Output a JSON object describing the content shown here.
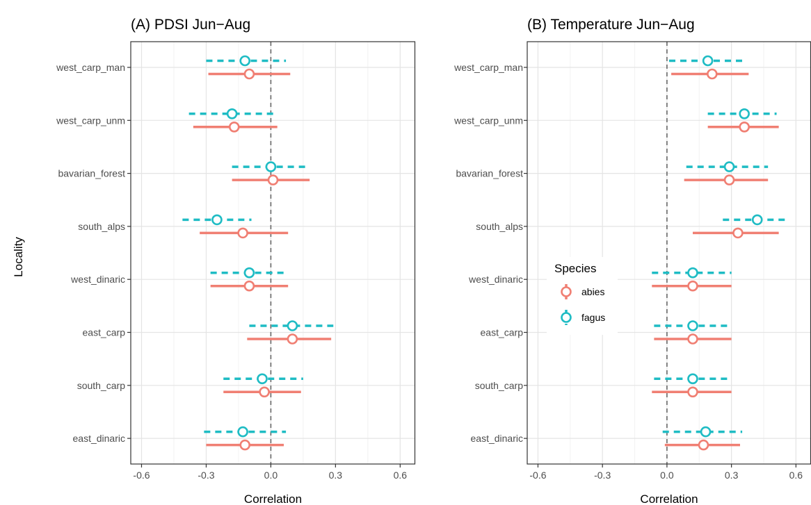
{
  "chart_data": [
    {
      "type": "dot-and-whisker",
      "title": "(A) PDSI Jun−Aug",
      "xlabel": "Correlation",
      "ylabel": "Locality",
      "xlim": [
        -0.65,
        0.67
      ],
      "xticks": [
        "-0.6",
        "-0.3",
        "0.0",
        "0.3",
        "0.6"
      ],
      "xtick_values": [
        -0.6,
        -0.3,
        0.0,
        0.3,
        0.6
      ],
      "reference_line": 0,
      "grid": true,
      "categories": [
        "west_carp_man",
        "west_carp_unm",
        "bavarian_forest",
        "south_alps",
        "west_dinaric",
        "east_carp",
        "south_carp",
        "east_dinaric"
      ],
      "series": [
        {
          "name": "abies",
          "estimate": [
            -0.1,
            -0.17,
            0.01,
            -0.13,
            -0.1,
            0.1,
            -0.03,
            -0.12
          ],
          "lower": [
            -0.29,
            -0.36,
            -0.18,
            -0.33,
            -0.28,
            -0.11,
            -0.22,
            -0.3
          ],
          "upper": [
            0.09,
            0.03,
            0.18,
            0.08,
            0.08,
            0.28,
            0.14,
            0.06
          ]
        },
        {
          "name": "fagus",
          "estimate": [
            -0.12,
            -0.18,
            0.0,
            -0.25,
            -0.1,
            0.1,
            -0.04,
            -0.13
          ],
          "lower": [
            -0.3,
            -0.38,
            -0.18,
            -0.41,
            -0.28,
            -0.1,
            -0.22,
            -0.31
          ],
          "upper": [
            0.07,
            0.02,
            0.18,
            -0.09,
            0.08,
            0.29,
            0.15,
            0.07
          ]
        }
      ]
    },
    {
      "type": "dot-and-whisker",
      "title": "(B) Temperature Jun−Aug",
      "xlabel": "Correlation",
      "ylabel": "",
      "xlim": [
        -0.65,
        0.67
      ],
      "xticks": [
        "-0.6",
        "-0.3",
        "0.0",
        "0.3",
        "0.6"
      ],
      "xtick_values": [
        -0.6,
        -0.3,
        0.0,
        0.3,
        0.6
      ],
      "reference_line": 0,
      "grid": true,
      "categories": [
        "west_carp_man",
        "west_carp_unm",
        "bavarian_forest",
        "south_alps",
        "west_dinaric",
        "east_carp",
        "south_carp",
        "east_dinaric"
      ],
      "series": [
        {
          "name": "abies",
          "estimate": [
            0.21,
            0.36,
            0.29,
            0.33,
            0.12,
            0.12,
            0.12,
            0.17
          ],
          "lower": [
            0.02,
            0.19,
            0.08,
            0.12,
            -0.07,
            -0.06,
            -0.07,
            -0.01
          ],
          "upper": [
            0.38,
            0.52,
            0.47,
            0.52,
            0.3,
            0.3,
            0.3,
            0.34
          ]
        },
        {
          "name": "fagus",
          "estimate": [
            0.19,
            0.36,
            0.29,
            0.42,
            0.12,
            0.12,
            0.12,
            0.18
          ],
          "lower": [
            0.01,
            0.19,
            0.09,
            0.26,
            -0.07,
            -0.06,
            -0.06,
            -0.02
          ],
          "upper": [
            0.36,
            0.51,
            0.47,
            0.57,
            0.3,
            0.3,
            0.3,
            0.35
          ]
        }
      ],
      "legend": {
        "title": "Species",
        "position": "inside-left",
        "entries": [
          "abies",
          "fagus"
        ]
      }
    }
  ],
  "colors": {
    "abies": "#F07F73",
    "fagus": "#1FBCC4",
    "grid_major": "#e4e4e4",
    "grid_minor": "#f2f2f2",
    "panel_border": "#333333",
    "zero_line": "#666666"
  }
}
